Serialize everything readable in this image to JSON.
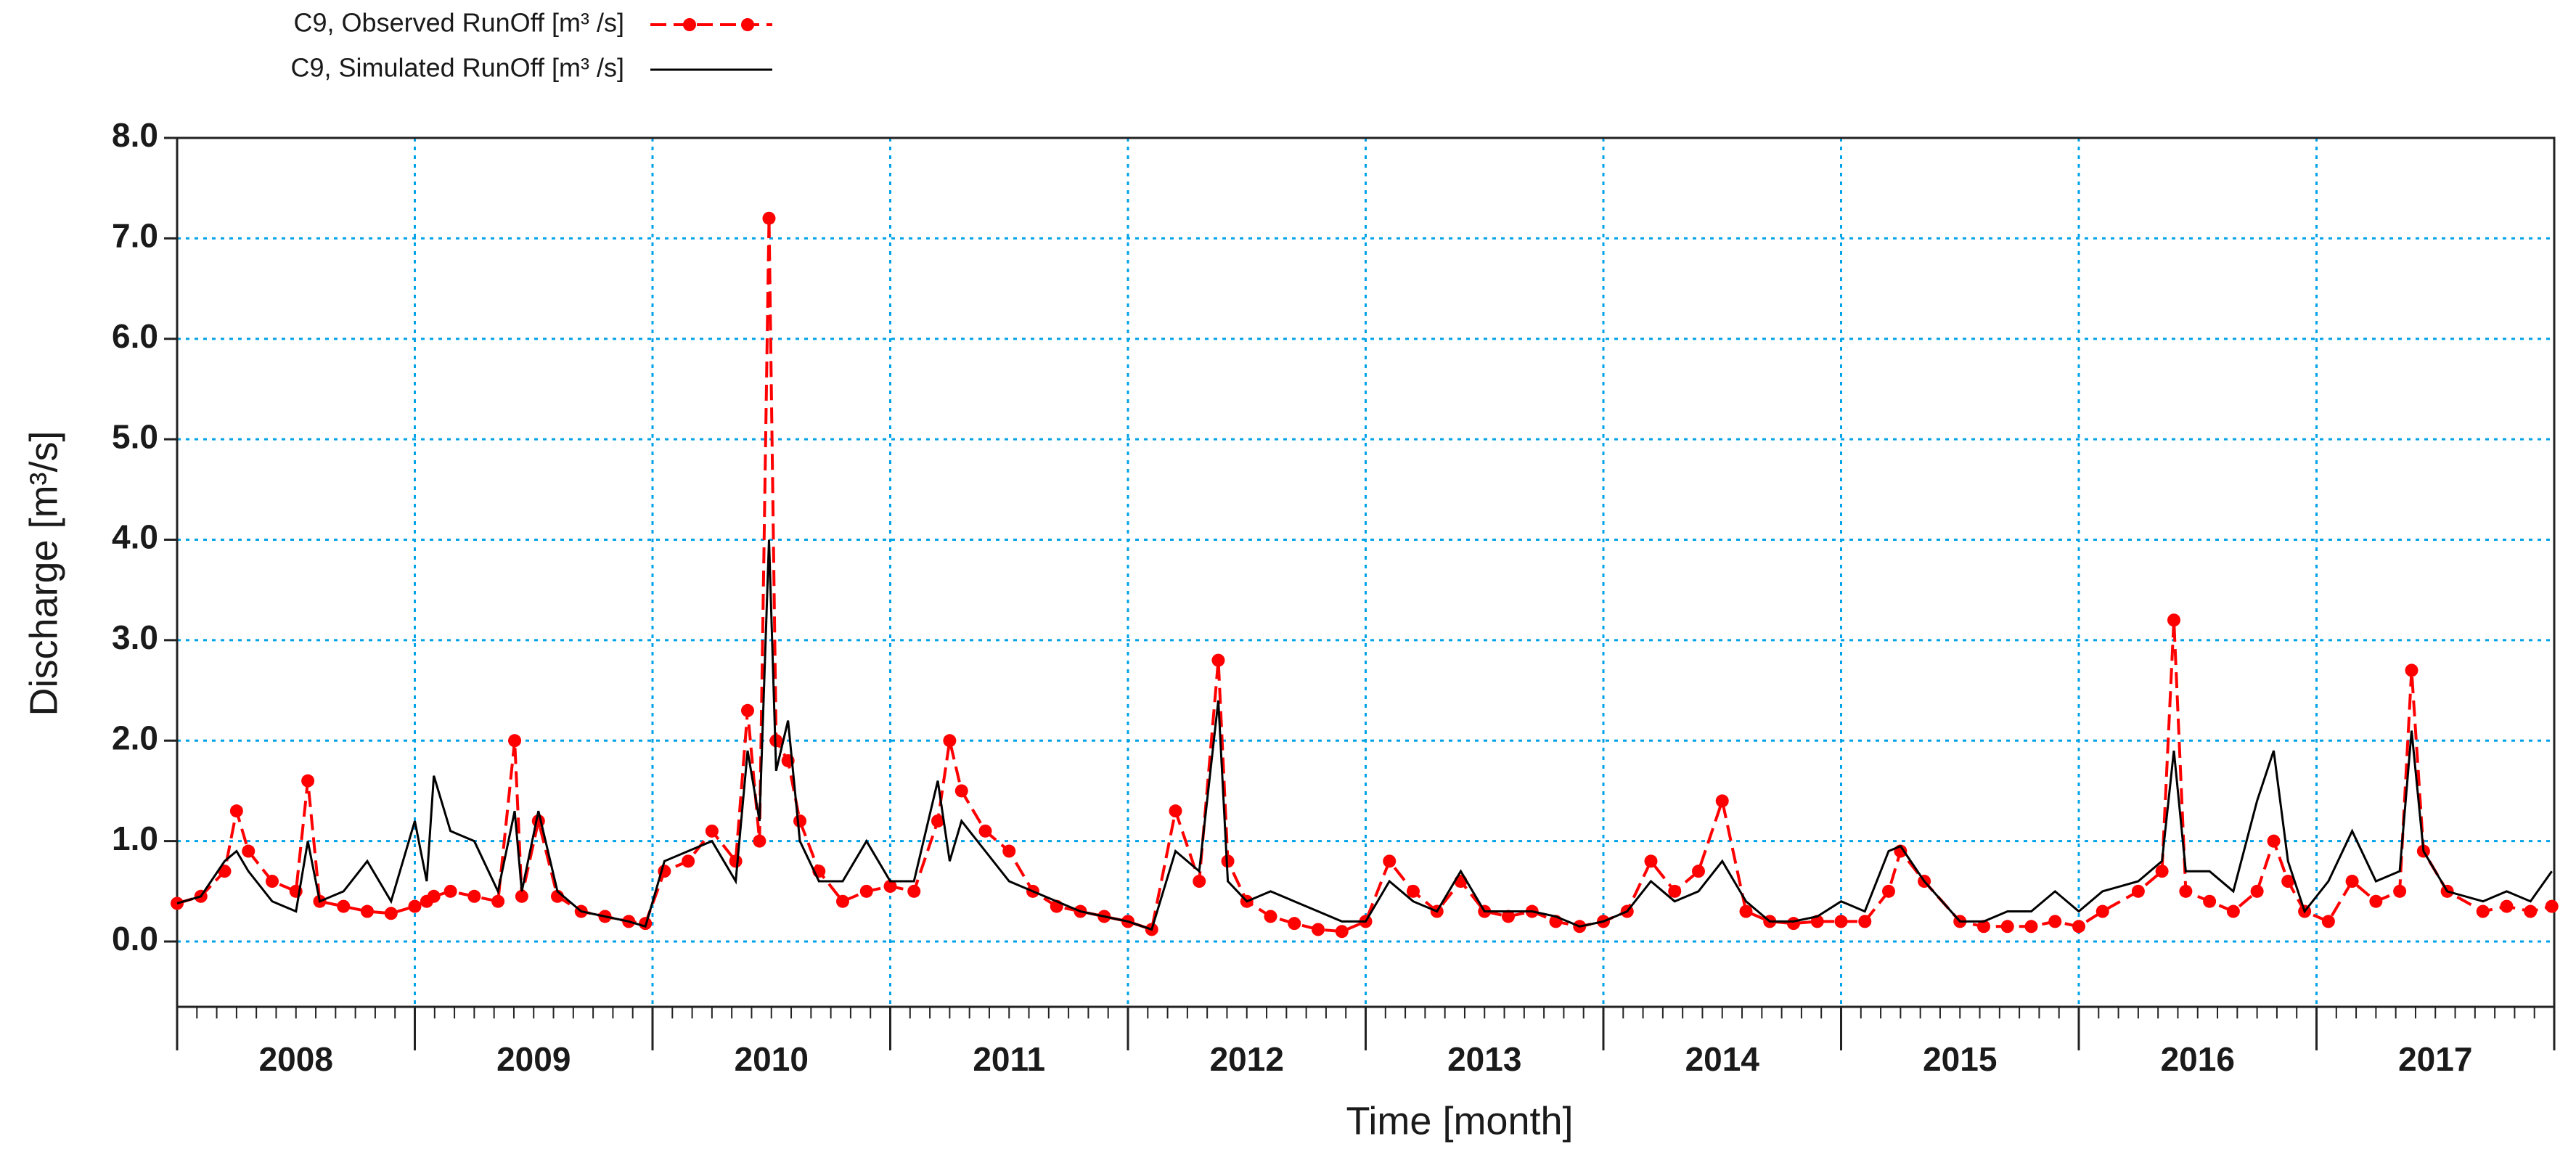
{
  "chart_data": {
    "type": "line",
    "xlabel": "Time [month]",
    "ylabel": "Discharge [m³/s]",
    "x": [
      2008.0,
      2008.1,
      2008.2,
      2008.25,
      2008.3,
      2008.4,
      2008.5,
      2008.55,
      2008.6,
      2008.7,
      2008.8,
      2008.9,
      2009.0,
      2009.05,
      2009.08,
      2009.15,
      2009.25,
      2009.35,
      2009.42,
      2009.45,
      2009.52,
      2009.6,
      2009.7,
      2009.8,
      2009.9,
      2009.97,
      2010.05,
      2010.15,
      2010.25,
      2010.35,
      2010.4,
      2010.45,
      2010.49,
      2010.52,
      2010.57,
      2010.62,
      2010.7,
      2010.8,
      2010.9,
      2011.0,
      2011.1,
      2011.2,
      2011.25,
      2011.3,
      2011.4,
      2011.5,
      2011.6,
      2011.7,
      2011.8,
      2011.9,
      2012.0,
      2012.1,
      2012.2,
      2012.3,
      2012.38,
      2012.42,
      2012.5,
      2012.6,
      2012.7,
      2012.8,
      2012.9,
      2013.0,
      2013.1,
      2013.2,
      2013.3,
      2013.4,
      2013.5,
      2013.6,
      2013.7,
      2013.8,
      2013.9,
      2014.0,
      2014.1,
      2014.2,
      2014.3,
      2014.4,
      2014.5,
      2014.6,
      2014.7,
      2014.8,
      2014.9,
      2015.0,
      2015.1,
      2015.2,
      2015.25,
      2015.35,
      2015.5,
      2015.6,
      2015.7,
      2015.8,
      2015.9,
      2016.0,
      2016.1,
      2016.25,
      2016.35,
      2016.4,
      2016.45,
      2016.55,
      2016.65,
      2016.75,
      2016.82,
      2016.88,
      2016.95,
      2017.05,
      2017.15,
      2017.25,
      2017.35,
      2017.4,
      2017.45,
      2017.55,
      2017.7,
      2017.8,
      2017.9,
      2017.99
    ],
    "series": [
      {
        "name": "C9, Observed RunOff [m³ /s]",
        "color": "#ff0000",
        "values": [
          0.38,
          0.45,
          0.7,
          1.3,
          0.9,
          0.6,
          0.5,
          1.6,
          0.4,
          0.35,
          0.3,
          0.28,
          0.35,
          0.4,
          0.45,
          0.5,
          0.45,
          0.4,
          2.0,
          0.45,
          1.2,
          0.45,
          0.3,
          0.25,
          0.2,
          0.18,
          0.7,
          0.8,
          1.1,
          0.8,
          2.3,
          1.0,
          7.2,
          2.0,
          1.8,
          1.2,
          0.7,
          0.4,
          0.5,
          0.55,
          0.5,
          1.2,
          2.0,
          1.5,
          1.1,
          0.9,
          0.5,
          0.35,
          0.3,
          0.25,
          0.2,
          0.12,
          1.3,
          0.6,
          2.8,
          0.8,
          0.4,
          0.25,
          0.18,
          0.12,
          0.1,
          0.2,
          0.8,
          0.5,
          0.3,
          0.6,
          0.3,
          0.25,
          0.3,
          0.2,
          0.15,
          0.2,
          0.3,
          0.8,
          0.5,
          0.7,
          1.4,
          0.3,
          0.2,
          0.18,
          0.2,
          0.2,
          0.2,
          0.5,
          0.9,
          0.6,
          0.2,
          0.15,
          0.15,
          0.15,
          0.2,
          0.15,
          0.3,
          0.5,
          0.7,
          3.2,
          0.5,
          0.4,
          0.3,
          0.5,
          1.0,
          0.6,
          0.3,
          0.2,
          0.6,
          0.4,
          0.5,
          2.7,
          0.9,
          0.5,
          0.3,
          0.35,
          0.3,
          0.35
        ]
      },
      {
        "name": "C9, Simulated RunOff [m³ /s]",
        "color": "#000000",
        "values": [
          0.38,
          0.45,
          0.8,
          0.9,
          0.7,
          0.4,
          0.3,
          1.0,
          0.4,
          0.5,
          0.8,
          0.4,
          1.2,
          0.6,
          1.65,
          1.1,
          1.0,
          0.5,
          1.3,
          0.5,
          1.3,
          0.5,
          0.3,
          0.25,
          0.2,
          0.15,
          0.8,
          0.9,
          1.0,
          0.6,
          1.9,
          1.2,
          4.0,
          1.7,
          2.2,
          1.0,
          0.6,
          0.6,
          1.0,
          0.6,
          0.6,
          1.6,
          0.8,
          1.2,
          0.9,
          0.6,
          0.5,
          0.4,
          0.3,
          0.25,
          0.2,
          0.12,
          0.9,
          0.7,
          2.4,
          0.6,
          0.4,
          0.5,
          0.4,
          0.3,
          0.2,
          0.2,
          0.6,
          0.4,
          0.3,
          0.7,
          0.3,
          0.3,
          0.3,
          0.25,
          0.15,
          0.2,
          0.3,
          0.6,
          0.4,
          0.5,
          0.8,
          0.4,
          0.2,
          0.2,
          0.25,
          0.4,
          0.3,
          0.9,
          0.95,
          0.6,
          0.2,
          0.2,
          0.3,
          0.3,
          0.5,
          0.3,
          0.5,
          0.6,
          0.8,
          1.9,
          0.7,
          0.7,
          0.5,
          1.4,
          1.9,
          0.8,
          0.3,
          0.6,
          1.1,
          0.6,
          0.7,
          2.1,
          0.9,
          0.5,
          0.4,
          0.5,
          0.4,
          0.7
        ]
      }
    ],
    "xlim": [
      2008,
      2018
    ],
    "xticks": [
      2008,
      2009,
      2010,
      2011,
      2012,
      2013,
      2014,
      2015,
      2016,
      2017,
      2018
    ],
    "year_labels": [
      {
        "value": 2008.5,
        "label": "2008"
      },
      {
        "value": 2009.5,
        "label": "2009"
      },
      {
        "value": 2010.5,
        "label": "2010"
      },
      {
        "value": 2011.5,
        "label": "2011"
      },
      {
        "value": 2012.5,
        "label": "2012"
      },
      {
        "value": 2013.5,
        "label": "2013"
      },
      {
        "value": 2014.5,
        "label": "2014"
      },
      {
        "value": 2015.5,
        "label": "2015"
      },
      {
        "value": 2016.5,
        "label": "2016"
      },
      {
        "value": 2017.5,
        "label": "2017"
      }
    ],
    "ylim": [
      -0.65,
      8.0
    ],
    "yticks": [
      {
        "value": 0,
        "label": "0.0"
      },
      {
        "value": 1,
        "label": "1.0"
      },
      {
        "value": 2,
        "label": "2.0"
      },
      {
        "value": 3,
        "label": "3.0"
      },
      {
        "value": 4,
        "label": "4.0"
      },
      {
        "value": 5,
        "label": "5.0"
      },
      {
        "value": 6,
        "label": "6.0"
      },
      {
        "value": 7,
        "label": "7.0"
      },
      {
        "value": 8,
        "label": "8.0"
      }
    ],
    "grid": true,
    "grid_color": "#00a2e8"
  }
}
